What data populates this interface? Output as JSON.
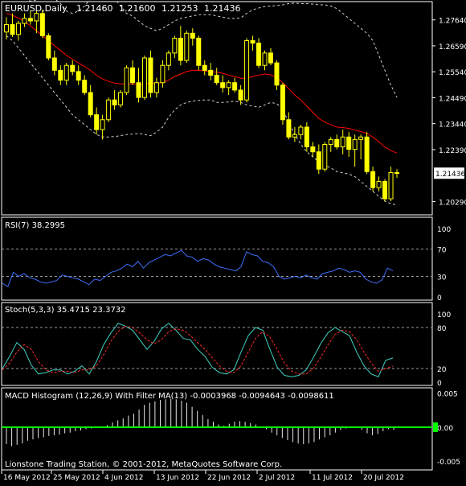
{
  "header": {
    "symbol": "EURUSD,Daily",
    "open": "1.21460",
    "high": "1.21600",
    "low": "1.21253",
    "close": "1.21436"
  },
  "footer": "Lionstone Trading Station, © 2001-2012, MetaQuotes Software Corp.",
  "colors": {
    "background": "#000000",
    "frame": "#ffffff",
    "grid": "#9a9a9a",
    "candle": "#ffff00",
    "ma": "#ff0000",
    "bands": "#cfcfcf",
    "rsi": "#3f6fff",
    "stoch_main": "#3fd0c0",
    "stoch_signal": "#ff2a2a",
    "macd_hist": "#e8e8e8",
    "macd_zero": "#00ff00"
  },
  "chart_data": [
    {
      "type": "candlestick",
      "title": "EURUSD,Daily",
      "ylim": [
        1.1975,
        1.2838
      ],
      "yticks": [
        "1.27640",
        "1.26590",
        "1.25540",
        "1.24490",
        "1.23440",
        "1.22390",
        "1.20290"
      ],
      "current_price_label": "1.21436",
      "x_ticks": [
        "16 May 2012",
        "25 May 2012",
        "4 Jun 2012",
        "13 Jun 2012",
        "22 Jun 2012",
        "2 Jul 2012",
        "11 Jul 2012",
        "20 Jul 2012"
      ],
      "candles": [
        {
          "o": 1.2715,
          "h": 1.2775,
          "l": 1.2685,
          "c": 1.2745
        },
        {
          "o": 1.2745,
          "h": 1.279,
          "l": 1.2695,
          "c": 1.2705
        },
        {
          "o": 1.2705,
          "h": 1.276,
          "l": 1.268,
          "c": 1.275
        },
        {
          "o": 1.275,
          "h": 1.279,
          "l": 1.2735,
          "c": 1.277
        },
        {
          "o": 1.277,
          "h": 1.28,
          "l": 1.2745,
          "c": 1.276
        },
        {
          "o": 1.276,
          "h": 1.28,
          "l": 1.271,
          "c": 1.279
        },
        {
          "o": 1.279,
          "h": 1.2805,
          "l": 1.269,
          "c": 1.27
        },
        {
          "o": 1.27,
          "h": 1.271,
          "l": 1.26,
          "c": 1.261
        },
        {
          "o": 1.261,
          "h": 1.264,
          "l": 1.254,
          "c": 1.256
        },
        {
          "o": 1.256,
          "h": 1.258,
          "l": 1.25,
          "c": 1.252
        },
        {
          "o": 1.252,
          "h": 1.259,
          "l": 1.25,
          "c": 1.258
        },
        {
          "o": 1.258,
          "h": 1.26,
          "l": 1.254,
          "c": 1.2555
        },
        {
          "o": 1.2555,
          "h": 1.258,
          "l": 1.25,
          "c": 1.252
        },
        {
          "o": 1.252,
          "h": 1.254,
          "l": 1.246,
          "c": 1.247
        },
        {
          "o": 1.247,
          "h": 1.25,
          "l": 1.237,
          "c": 1.238
        },
        {
          "o": 1.238,
          "h": 1.241,
          "l": 1.23,
          "c": 1.232
        },
        {
          "o": 1.232,
          "h": 1.238,
          "l": 1.228,
          "c": 1.236
        },
        {
          "o": 1.236,
          "h": 1.245,
          "l": 1.235,
          "c": 1.244
        },
        {
          "o": 1.244,
          "h": 1.248,
          "l": 1.24,
          "c": 1.242
        },
        {
          "o": 1.242,
          "h": 1.248,
          "l": 1.241,
          "c": 1.247
        },
        {
          "o": 1.247,
          "h": 1.258,
          "l": 1.246,
          "c": 1.257
        },
        {
          "o": 1.257,
          "h": 1.26,
          "l": 1.25,
          "c": 1.251
        },
        {
          "o": 1.251,
          "h": 1.257,
          "l": 1.243,
          "c": 1.245
        },
        {
          "o": 1.245,
          "h": 1.262,
          "l": 1.244,
          "c": 1.261
        },
        {
          "o": 1.261,
          "h": 1.264,
          "l": 1.245,
          "c": 1.247
        },
        {
          "o": 1.247,
          "h": 1.253,
          "l": 1.245,
          "c": 1.251
        },
        {
          "o": 1.251,
          "h": 1.26,
          "l": 1.249,
          "c": 1.258
        },
        {
          "o": 1.258,
          "h": 1.264,
          "l": 1.256,
          "c": 1.263
        },
        {
          "o": 1.263,
          "h": 1.27,
          "l": 1.261,
          "c": 1.269
        },
        {
          "o": 1.269,
          "h": 1.274,
          "l": 1.258,
          "c": 1.26
        },
        {
          "o": 1.26,
          "h": 1.272,
          "l": 1.259,
          "c": 1.271
        },
        {
          "o": 1.271,
          "h": 1.273,
          "l": 1.266,
          "c": 1.269
        },
        {
          "o": 1.269,
          "h": 1.27,
          "l": 1.256,
          "c": 1.258
        },
        {
          "o": 1.258,
          "h": 1.26,
          "l": 1.254,
          "c": 1.256
        },
        {
          "o": 1.256,
          "h": 1.259,
          "l": 1.252,
          "c": 1.254
        },
        {
          "o": 1.254,
          "h": 1.257,
          "l": 1.25,
          "c": 1.251
        },
        {
          "o": 1.251,
          "h": 1.254,
          "l": 1.247,
          "c": 1.249
        },
        {
          "o": 1.249,
          "h": 1.252,
          "l": 1.246,
          "c": 1.251
        },
        {
          "o": 1.251,
          "h": 1.253,
          "l": 1.247,
          "c": 1.248
        },
        {
          "o": 1.248,
          "h": 1.25,
          "l": 1.242,
          "c": 1.244
        },
        {
          "o": 1.244,
          "h": 1.269,
          "l": 1.243,
          "c": 1.268
        },
        {
          "o": 1.268,
          "h": 1.27,
          "l": 1.264,
          "c": 1.267
        },
        {
          "o": 1.267,
          "h": 1.269,
          "l": 1.257,
          "c": 1.258
        },
        {
          "o": 1.258,
          "h": 1.264,
          "l": 1.256,
          "c": 1.263
        },
        {
          "o": 1.263,
          "h": 1.265,
          "l": 1.258,
          "c": 1.259
        },
        {
          "o": 1.259,
          "h": 1.26,
          "l": 1.248,
          "c": 1.25
        },
        {
          "o": 1.25,
          "h": 1.251,
          "l": 1.234,
          "c": 1.236
        },
        {
          "o": 1.236,
          "h": 1.239,
          "l": 1.228,
          "c": 1.229
        },
        {
          "o": 1.229,
          "h": 1.233,
          "l": 1.227,
          "c": 1.23
        },
        {
          "o": 1.23,
          "h": 1.234,
          "l": 1.228,
          "c": 1.233
        },
        {
          "o": 1.233,
          "h": 1.235,
          "l": 1.223,
          "c": 1.225
        },
        {
          "o": 1.225,
          "h": 1.227,
          "l": 1.221,
          "c": 1.223
        },
        {
          "o": 1.223,
          "h": 1.226,
          "l": 1.214,
          "c": 1.216
        },
        {
          "o": 1.216,
          "h": 1.227,
          "l": 1.215,
          "c": 1.226
        },
        {
          "o": 1.226,
          "h": 1.229,
          "l": 1.223,
          "c": 1.228
        },
        {
          "o": 1.228,
          "h": 1.23,
          "l": 1.224,
          "c": 1.225
        },
        {
          "o": 1.225,
          "h": 1.232,
          "l": 1.222,
          "c": 1.229
        },
        {
          "o": 1.229,
          "h": 1.231,
          "l": 1.221,
          "c": 1.224
        },
        {
          "o": 1.224,
          "h": 1.23,
          "l": 1.217,
          "c": 1.228
        },
        {
          "o": 1.228,
          "h": 1.23,
          "l": 1.22,
          "c": 1.229
        },
        {
          "o": 1.229,
          "h": 1.231,
          "l": 1.214,
          "c": 1.215
        },
        {
          "o": 1.215,
          "h": 1.217,
          "l": 1.207,
          "c": 1.2085
        },
        {
          "o": 1.2085,
          "h": 1.213,
          "l": 1.207,
          "c": 1.211
        },
        {
          "o": 1.211,
          "h": 1.212,
          "l": 1.203,
          "c": 1.204
        },
        {
          "o": 1.204,
          "h": 1.217,
          "l": 1.203,
          "c": 1.2146
        },
        {
          "o": 1.2146,
          "h": 1.216,
          "l": 1.2125,
          "c": 1.21436
        }
      ],
      "ma": [
        1.279,
        1.2782,
        1.2772,
        1.2758,
        1.274,
        1.272,
        1.27,
        1.268,
        1.266,
        1.264,
        1.262,
        1.2605,
        1.259,
        1.2575,
        1.256,
        1.254,
        1.2525,
        1.2515,
        1.2508,
        1.2505,
        1.2505,
        1.2505,
        1.25,
        1.2505,
        1.2508,
        1.2508,
        1.251,
        1.252,
        1.2535,
        1.2545,
        1.2555,
        1.256,
        1.256,
        1.2558,
        1.2555,
        1.2552,
        1.2548,
        1.254,
        1.2535,
        1.2528,
        1.2528,
        1.2535,
        1.254,
        1.2545,
        1.2542,
        1.253,
        1.251,
        1.2485,
        1.246,
        1.244,
        1.2415,
        1.239,
        1.2365,
        1.235,
        1.234,
        1.233,
        1.2328,
        1.2325,
        1.2318,
        1.2312,
        1.2305,
        1.229,
        1.227,
        1.225,
        1.2235,
        1.2225
      ],
      "upper_band": [
        1.287,
        1.287,
        1.286,
        1.285,
        1.284,
        1.2845,
        1.2855,
        1.286,
        1.285,
        1.283,
        1.28,
        1.279,
        1.28,
        1.282,
        1.285,
        1.287,
        1.288,
        1.287,
        1.285,
        1.282,
        1.279,
        1.278,
        1.276,
        1.274,
        1.273,
        1.272,
        1.273,
        1.2745,
        1.276,
        1.277,
        1.2775,
        1.278,
        1.2785,
        1.2785,
        1.2785,
        1.278,
        1.2775,
        1.277,
        1.277,
        1.2772,
        1.279,
        1.2805,
        1.2812,
        1.2818,
        1.282,
        1.2822,
        1.2825,
        1.283,
        1.2832,
        1.283,
        1.283,
        1.2828,
        1.2825,
        1.2825,
        1.282,
        1.281,
        1.279,
        1.277,
        1.275,
        1.273,
        1.271,
        1.268,
        1.262,
        1.256,
        1.25,
        1.245
      ],
      "lower_band": [
        1.27,
        1.268,
        1.265,
        1.262,
        1.259,
        1.256,
        1.253,
        1.25,
        1.247,
        1.244,
        1.241,
        1.238,
        1.236,
        1.234,
        1.232,
        1.23,
        1.229,
        1.229,
        1.2292,
        1.2295,
        1.23,
        1.2302,
        1.2305,
        1.23,
        1.2295,
        1.231,
        1.233,
        1.237,
        1.24,
        1.242,
        1.243,
        1.2435,
        1.2438,
        1.244,
        1.244,
        1.243,
        1.243,
        1.2432,
        1.2435,
        1.243,
        1.242,
        1.2415,
        1.241,
        1.242,
        1.243,
        1.2425,
        1.24,
        1.235,
        1.23,
        1.226,
        1.223,
        1.221,
        1.219,
        1.2175,
        1.2165,
        1.215,
        1.2145,
        1.214,
        1.213,
        1.211,
        1.209,
        1.207,
        1.205,
        1.203,
        1.202,
        1.2015
      ]
    },
    {
      "type": "line",
      "title": "RSI(7) 38.2995",
      "ylim": [
        0,
        100
      ],
      "yticks": [
        "100",
        "70",
        "30",
        "0"
      ],
      "levels": [
        70,
        30
      ],
      "series": [
        {
          "values": [
            20,
            15,
            36,
            30,
            34,
            28,
            26,
            22,
            20,
            22,
            24,
            32,
            30,
            28,
            26,
            22,
            18,
            26,
            24,
            30,
            36,
            38,
            42,
            48,
            44,
            52,
            42,
            50,
            54,
            58,
            62,
            60,
            64,
            68,
            60,
            58,
            52,
            56,
            54,
            48,
            44,
            42,
            40,
            38,
            44,
            66,
            62,
            60,
            52,
            50,
            44,
            30,
            26,
            28,
            30,
            28,
            32,
            28,
            26,
            34,
            36,
            38,
            42,
            40,
            36,
            38,
            36,
            26,
            22,
            20,
            25,
            42,
            38.3
          ]
        }
      ]
    },
    {
      "type": "line",
      "title": "Stoch(5,3,3) 35.4715 23.3732",
      "ylim": [
        0,
        100
      ],
      "yticks": [
        "100",
        "80",
        "20",
        "0"
      ],
      "levels": [
        80,
        20
      ],
      "series": [
        {
          "values": [
            20,
            38,
            58,
            48,
            25,
            12,
            14,
            18,
            18,
            12,
            16,
            24,
            12,
            30,
            55,
            72,
            86,
            82,
            76,
            62,
            48,
            60,
            78,
            86,
            76,
            64,
            62,
            48,
            38,
            22,
            14,
            12,
            18,
            44,
            68,
            80,
            76,
            48,
            22,
            10,
            8,
            10,
            18,
            36,
            56,
            72,
            80,
            74,
            68,
            44,
            24,
            12,
            8,
            32,
            35.47
          ]
        },
        {
          "values": [
            18,
            28,
            44,
            55,
            48,
            30,
            18,
            14,
            16,
            16,
            14,
            18,
            18,
            24,
            40,
            60,
            74,
            82,
            80,
            72,
            62,
            56,
            62,
            74,
            78,
            76,
            68,
            58,
            48,
            36,
            24,
            16,
            14,
            24,
            44,
            64,
            74,
            66,
            48,
            28,
            16,
            12,
            12,
            20,
            36,
            54,
            70,
            76,
            74,
            62,
            44,
            28,
            16,
            20,
            23.37
          ]
        }
      ]
    },
    {
      "type": "bar",
      "title": "MACD Histogram (12,26,9) With Filter MA(13) -0.0003968 -0.0094643 -0.0098611",
      "ylim": [
        -0.0063,
        0.0058
      ],
      "yticks": [
        "0.005",
        "0.00",
        "-0.005"
      ],
      "values": [
        -0.0025,
        -0.0028,
        -0.0026,
        -0.0024,
        -0.002,
        -0.0018,
        -0.0016,
        -0.0015,
        -0.0013,
        -0.0012,
        -0.0011,
        -0.0009,
        -0.0008,
        -0.0006,
        -0.0005,
        -0.0003,
        -0.0002,
        -0.0001,
        0.0001,
        0.0003,
        0.0007,
        0.001,
        0.0013,
        0.0017,
        0.002,
        0.0026,
        0.0033,
        0.0036,
        0.0038,
        0.004,
        0.0041,
        0.0042,
        0.0041,
        0.0039,
        0.0036,
        0.003,
        0.0024,
        0.0018,
        0.0012,
        0.0008,
        0.0004,
        0.0002,
        0.0005,
        0.0008,
        0.0009,
        0.0008,
        0.0006,
        0.0004,
        0.0001,
        -0.0003,
        -0.0008,
        -0.0012,
        -0.0016,
        -0.0019,
        -0.0022,
        -0.0024,
        -0.0025,
        -0.0024,
        -0.0022,
        -0.0018,
        -0.0015,
        -0.0012,
        -0.0008,
        -0.0004,
        -0.0002,
        -0.0001,
        0.0,
        -0.0004,
        -0.0009,
        -0.0012,
        -0.001,
        -0.0006,
        -0.0003,
        -0.0004
      ]
    }
  ]
}
